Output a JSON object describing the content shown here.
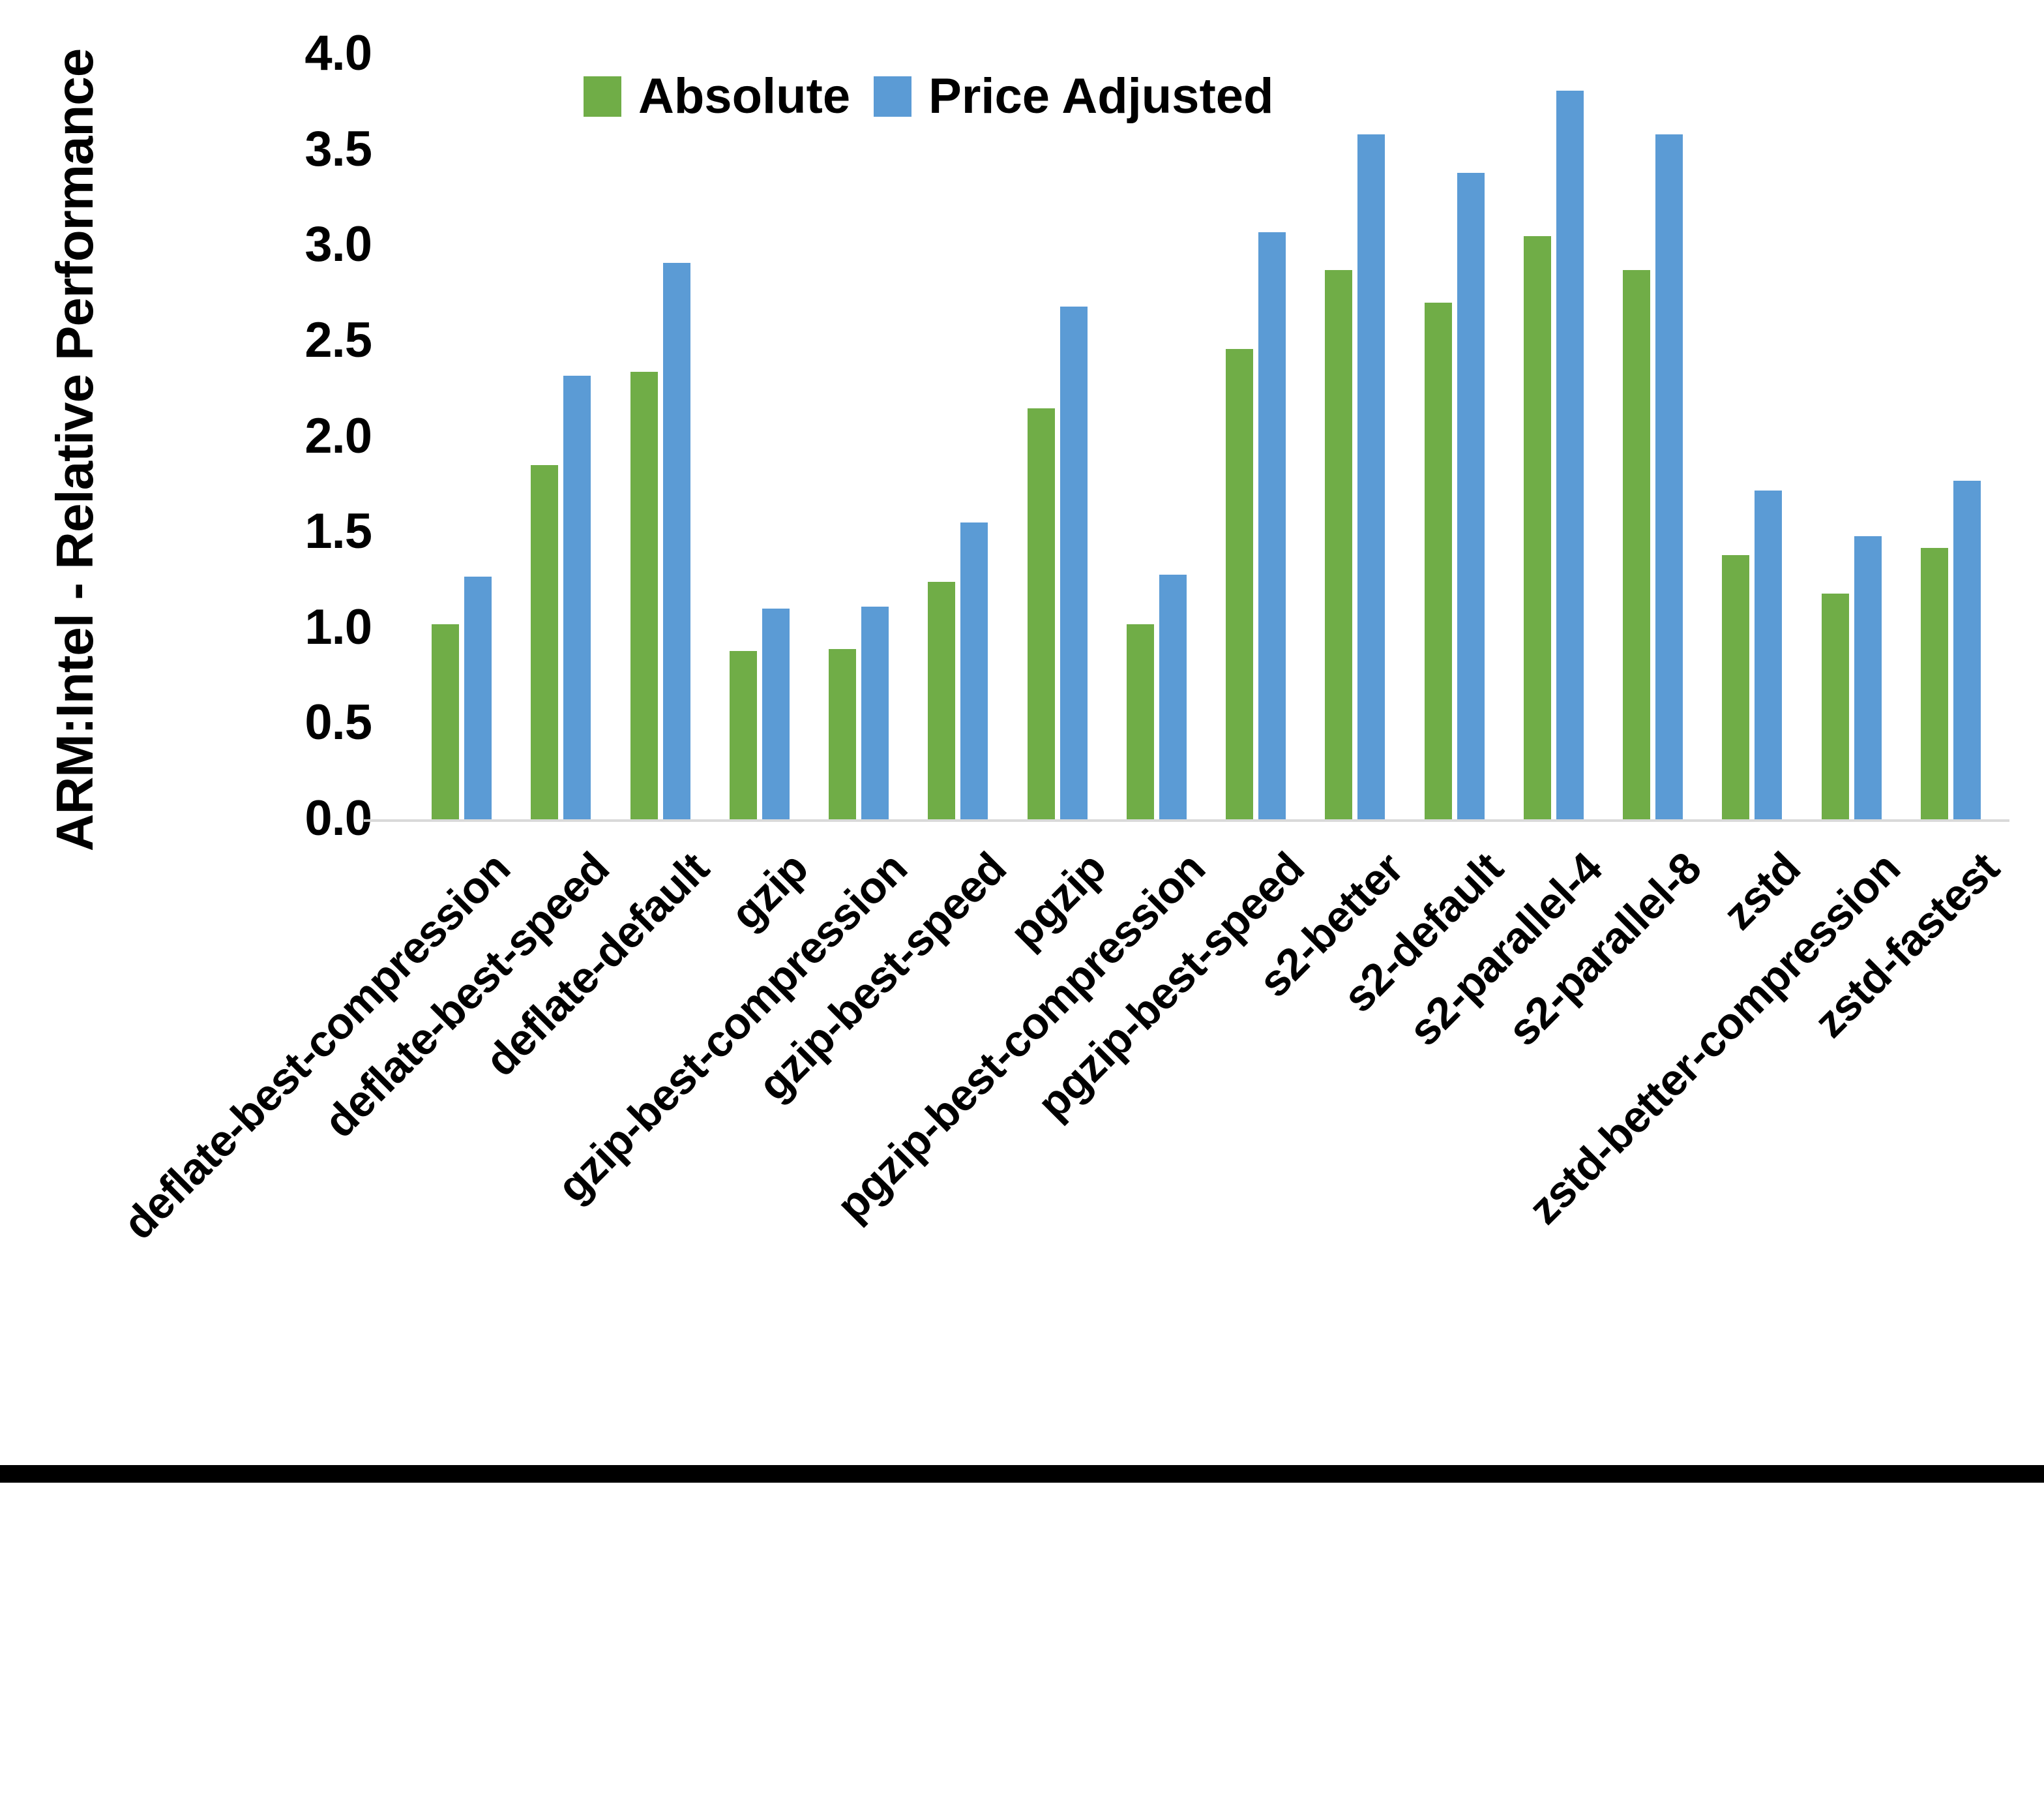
{
  "figure": {
    "y_axis_title": "ARM:Intel - Relative Performance"
  },
  "legend": {
    "items": [
      {
        "label": "Absolute",
        "color": "#70AD47"
      },
      {
        "label": "Price Adjusted",
        "color": "#5B9BD5"
      }
    ]
  },
  "chart_data": {
    "type": "bar",
    "title": "",
    "xlabel": "",
    "ylabel": "ARM:Intel - Relative Performance",
    "ylim": [
      0.0,
      4.0
    ],
    "ytick_step": 0.5,
    "yticks": [
      "0.0",
      "0.5",
      "1.0",
      "1.5",
      "2.0",
      "2.5",
      "3.0",
      "3.5",
      "4.0"
    ],
    "grid": false,
    "legend_position": "top-center",
    "categories": [
      "deflate-best-compression",
      "deflate-best-speed",
      "deflate-default",
      "gzip",
      "gzip-best-compression",
      "gzip-best-speed",
      "pgzip",
      "pgzip-best-compression",
      "pgzip-best-speed",
      "s2-better",
      "s2-default",
      "s2-parallel-4",
      "s2-parallel-8",
      "zstd",
      "zstd-better-compression",
      "zstd-fastest"
    ],
    "series": [
      {
        "name": "Absolute",
        "color": "#70AD47",
        "values": [
          1.02,
          1.85,
          2.34,
          0.88,
          0.89,
          1.24,
          2.15,
          1.02,
          2.46,
          2.87,
          2.7,
          3.05,
          2.87,
          1.38,
          1.18,
          1.42
        ]
      },
      {
        "name": "Price Adjusted",
        "color": "#5B9BD5",
        "values": [
          1.27,
          2.32,
          2.91,
          1.1,
          1.11,
          1.55,
          2.68,
          1.28,
          3.07,
          3.58,
          3.38,
          3.81,
          3.58,
          1.72,
          1.48,
          1.77
        ]
      }
    ]
  }
}
